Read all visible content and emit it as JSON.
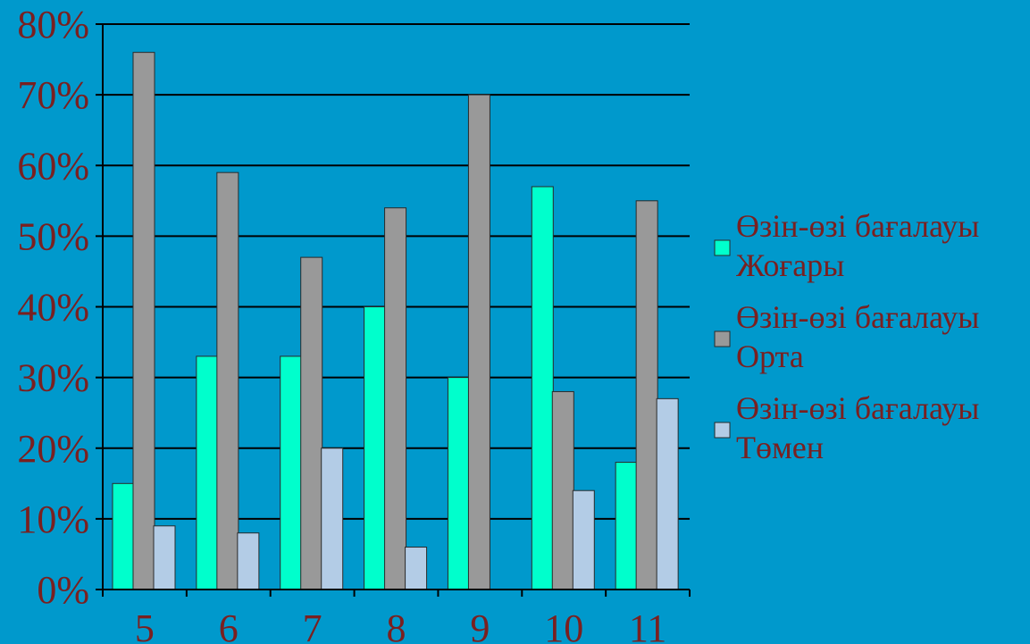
{
  "chart_data": {
    "type": "bar",
    "title": "",
    "xlabel": "",
    "ylabel": "",
    "categories": [
      "5",
      "6",
      "7",
      "8",
      "9",
      "10",
      "11"
    ],
    "ylim": [
      0,
      80
    ],
    "yticks": [
      "0%",
      "10%",
      "20%",
      "30%",
      "40%",
      "50%",
      "60%",
      "70%",
      "80%"
    ],
    "grid": true,
    "legend_position": "right",
    "series": [
      {
        "name_lines": [
          "Өзін-өзі бағалауы",
          "Жоғары"
        ],
        "color": "#00FFCC",
        "values": [
          15,
          33,
          33,
          40,
          30,
          57,
          18
        ]
      },
      {
        "name_lines": [
          "Өзін-өзі бағалауы",
          "Орта"
        ],
        "color": "#999999",
        "values": [
          76,
          59,
          47,
          54,
          70,
          28,
          55
        ]
      },
      {
        "name_lines": [
          "Өзін-өзі бағалауы",
          "Төмен"
        ],
        "color": "#B3CCE6",
        "values": [
          9,
          8,
          20,
          6,
          0,
          14,
          27
        ]
      }
    ],
    "text_color": "#7A2020",
    "axis_color": "#000000"
  }
}
